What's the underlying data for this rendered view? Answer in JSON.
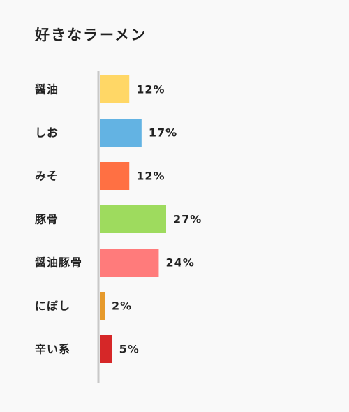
{
  "chart_data": {
    "type": "bar",
    "orientation": "horizontal",
    "title": "好きなラーメン",
    "categories": [
      "醤油",
      "しお",
      "みそ",
      "豚骨",
      "醤油豚骨",
      "にぼし",
      "辛い系"
    ],
    "values": [
      12,
      17,
      12,
      27,
      24,
      2,
      5
    ],
    "value_labels": [
      "12%",
      "17%",
      "12%",
      "27%",
      "24%",
      "2%",
      "5%"
    ],
    "colors": [
      "#ffd766",
      "#63b3e3",
      "#ff7043",
      "#9edb5e",
      "#ff7b7b",
      "#e69a2c",
      "#d62728"
    ],
    "unit": "%",
    "xlim": [
      0,
      27
    ],
    "grid": false,
    "legend": "none"
  }
}
